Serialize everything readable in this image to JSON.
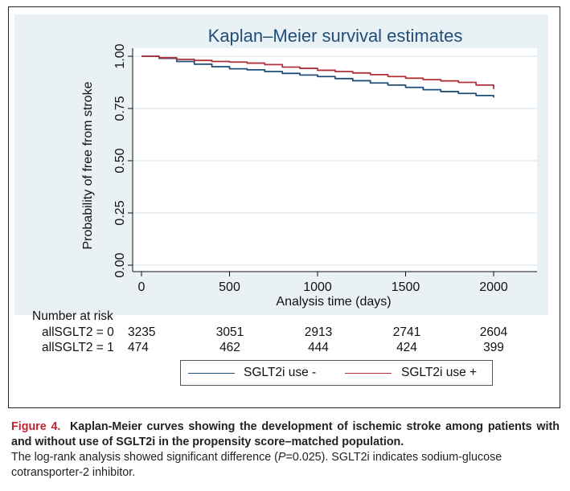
{
  "chart_data": {
    "type": "line",
    "title": "Kaplan–Meier survival estimates",
    "xlabel": "Analysis time (days)",
    "ylabel": "Probability of free from stroke",
    "xlim": [
      0,
      2200
    ],
    "ylim": [
      0,
      1
    ],
    "x_ticks": [
      "0",
      "500",
      "1000",
      "1500",
      "2000"
    ],
    "y_ticks": [
      "0.00",
      "0.25",
      "0.50",
      "0.75",
      "1.00"
    ],
    "grid": true,
    "legend_position": "bottom",
    "series": [
      {
        "name": "SGLT2i use -",
        "color": "#1f4e79",
        "x": [
          0,
          100,
          200,
          300,
          400,
          500,
          600,
          700,
          800,
          900,
          1000,
          1100,
          1200,
          1300,
          1400,
          1500,
          1600,
          1700,
          1800,
          1900,
          2000
        ],
        "y": [
          1.0,
          0.99,
          0.975,
          0.962,
          0.95,
          0.94,
          0.935,
          0.927,
          0.918,
          0.91,
          0.903,
          0.893,
          0.883,
          0.872,
          0.862,
          0.851,
          0.84,
          0.831,
          0.822,
          0.812,
          0.803
        ]
      },
      {
        "name": "SGLT2i use +",
        "color": "#b0313a",
        "x": [
          0,
          100,
          200,
          300,
          400,
          500,
          600,
          700,
          800,
          900,
          1000,
          1100,
          1200,
          1300,
          1400,
          1500,
          1600,
          1700,
          1800,
          1900,
          2000
        ],
        "y": [
          1.0,
          0.993,
          0.985,
          0.98,
          0.975,
          0.972,
          0.967,
          0.96,
          0.948,
          0.942,
          0.933,
          0.927,
          0.92,
          0.912,
          0.903,
          0.895,
          0.888,
          0.882,
          0.875,
          0.862,
          0.843
        ]
      }
    ]
  },
  "risk_table": {
    "title": "Number at risk",
    "rows": [
      {
        "label": "allSGLT2 = 0",
        "counts": [
          "3235",
          "3051",
          "2913",
          "2741",
          "2604"
        ]
      },
      {
        "label": "allSGLT2 = 1",
        "counts": [
          "474",
          "462",
          "444",
          "424",
          "399"
        ]
      }
    ]
  },
  "legend": {
    "items": [
      {
        "label": "SGLT2i use -",
        "color": "#1f4e79"
      },
      {
        "label": "SGLT2i use +",
        "color": "#b0313a"
      }
    ]
  },
  "caption": {
    "figure_label": "Figure 4.",
    "bold_text": "Kaplan-Meier curves showing the development of ischemic stroke among patients with and without use of SGLT2i in the propensity score–matched population.",
    "note_before": "The log-rank analysis showed significant difference (",
    "note_italic": "P",
    "note_after": "=0.025). SGLT2i indicates sodium-glucose cotransporter-2 inhibitor."
  }
}
